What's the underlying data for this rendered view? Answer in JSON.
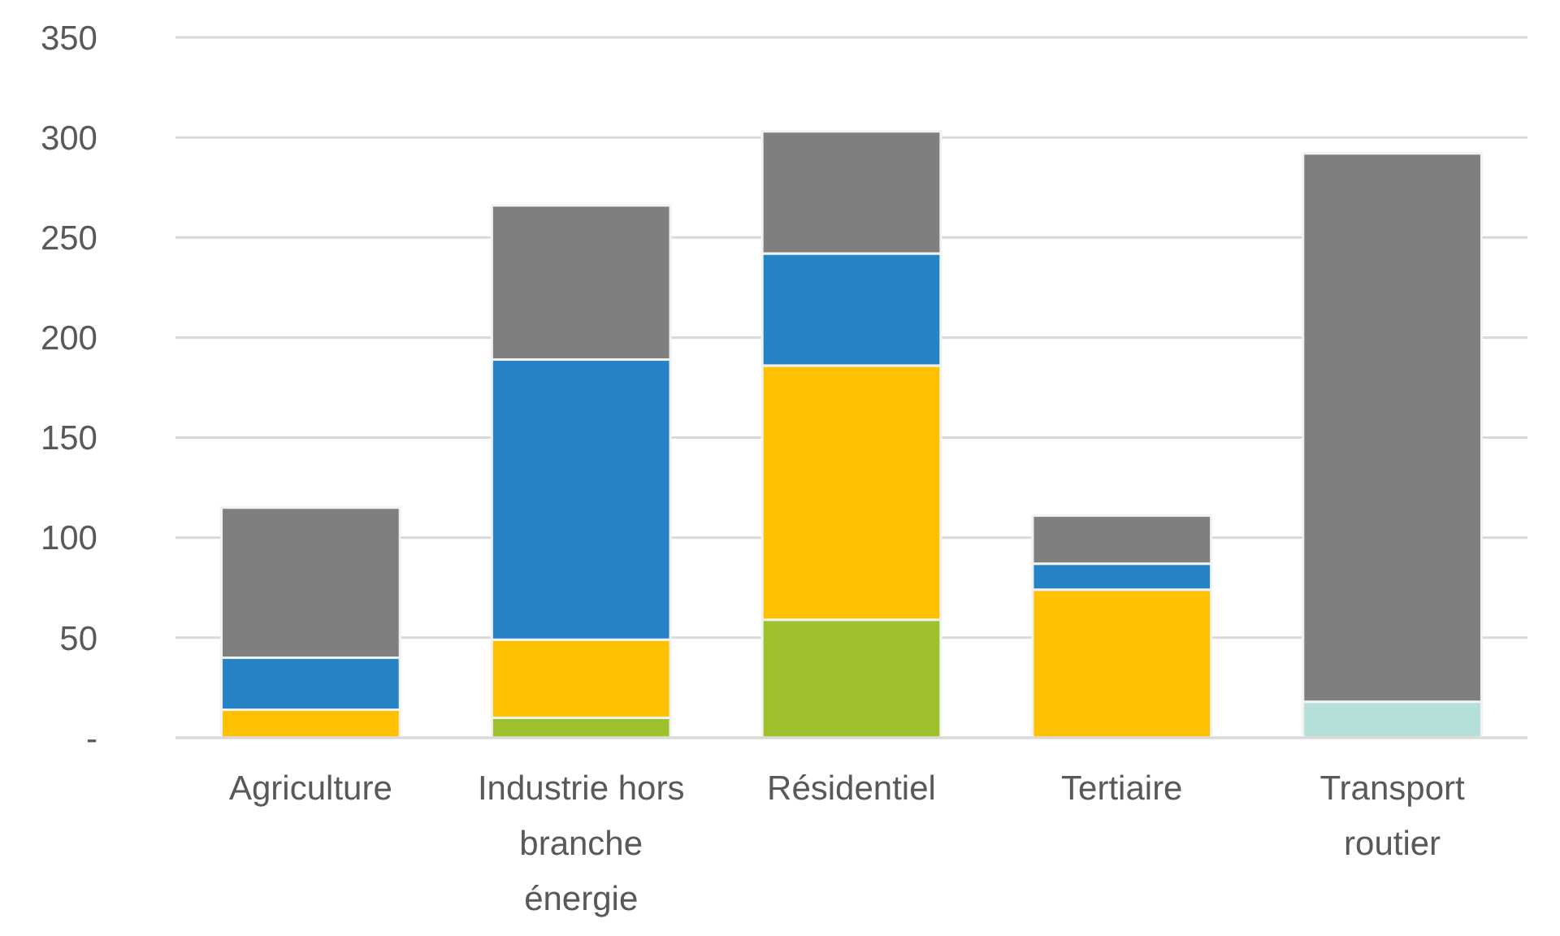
{
  "chart_data": {
    "type": "bar",
    "stacked": true,
    "categories": [
      "Agriculture",
      "Industrie hors branche énergie",
      "Résidentiel",
      "Tertiaire",
      "Transport routier"
    ],
    "series": [
      {
        "color": "#9fc12e",
        "values": [
          0,
          10,
          59,
          0,
          0
        ]
      },
      {
        "color": "#b5dfd9",
        "values": [
          0,
          0,
          0,
          0,
          18
        ]
      },
      {
        "color": "#ffc000",
        "values": [
          14,
          39,
          127,
          74,
          0
        ]
      },
      {
        "color": "#2683c6",
        "values": [
          26,
          140,
          56,
          13,
          0
        ]
      },
      {
        "color": "#7f7f7f",
        "values": [
          75,
          77,
          61,
          24,
          274
        ]
      }
    ],
    "ylim": [
      0,
      350
    ],
    "yticks": [
      {
        "value": 0,
        "label": "-"
      },
      50,
      100,
      150,
      200,
      250,
      300,
      350
    ],
    "grid": "y"
  }
}
